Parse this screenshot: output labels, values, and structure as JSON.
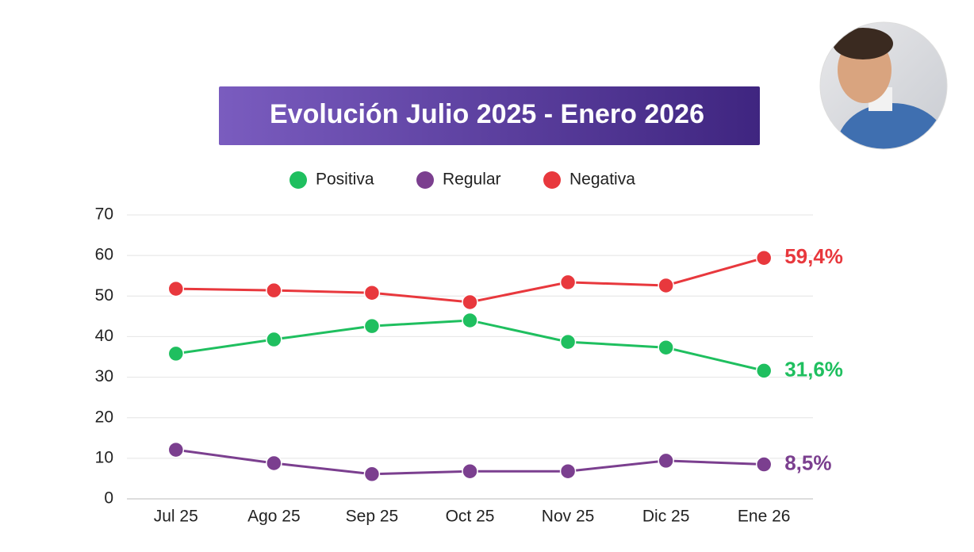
{
  "chart_data": {
    "type": "line",
    "title": "Evolución Julio 2025 - Enero 2026",
    "categories": [
      "Jul 25",
      "Ago 25",
      "Sep 25",
      "Oct 25",
      "Nov 25",
      "Dic 25",
      "Ene 26"
    ],
    "series": [
      {
        "name": "Positiva",
        "color": "#1fbf5f",
        "values": [
          35.8,
          39.3,
          42.6,
          44.0,
          38.7,
          37.3,
          31.6
        ],
        "value_labels": [
          null,
          null,
          null,
          null,
          null,
          null,
          "31,6%"
        ]
      },
      {
        "name": "Regular",
        "color": "#7b3f8f",
        "values": [
          12.1,
          8.8,
          6.1,
          6.8,
          6.8,
          9.4,
          8.5
        ],
        "value_labels": [
          null,
          null,
          null,
          null,
          null,
          null,
          "8,5%"
        ]
      },
      {
        "name": "Negativa",
        "color": "#e8383d",
        "values": [
          51.8,
          51.4,
          50.8,
          48.5,
          53.4,
          52.6,
          59.4
        ],
        "value_labels": [
          null,
          null,
          null,
          null,
          null,
          null,
          "59,4%"
        ]
      }
    ],
    "ylim": [
      0,
      70
    ],
    "yticks": [
      0,
      10,
      20,
      30,
      40,
      50,
      60,
      70
    ],
    "grid": true,
    "legend": "top"
  }
}
